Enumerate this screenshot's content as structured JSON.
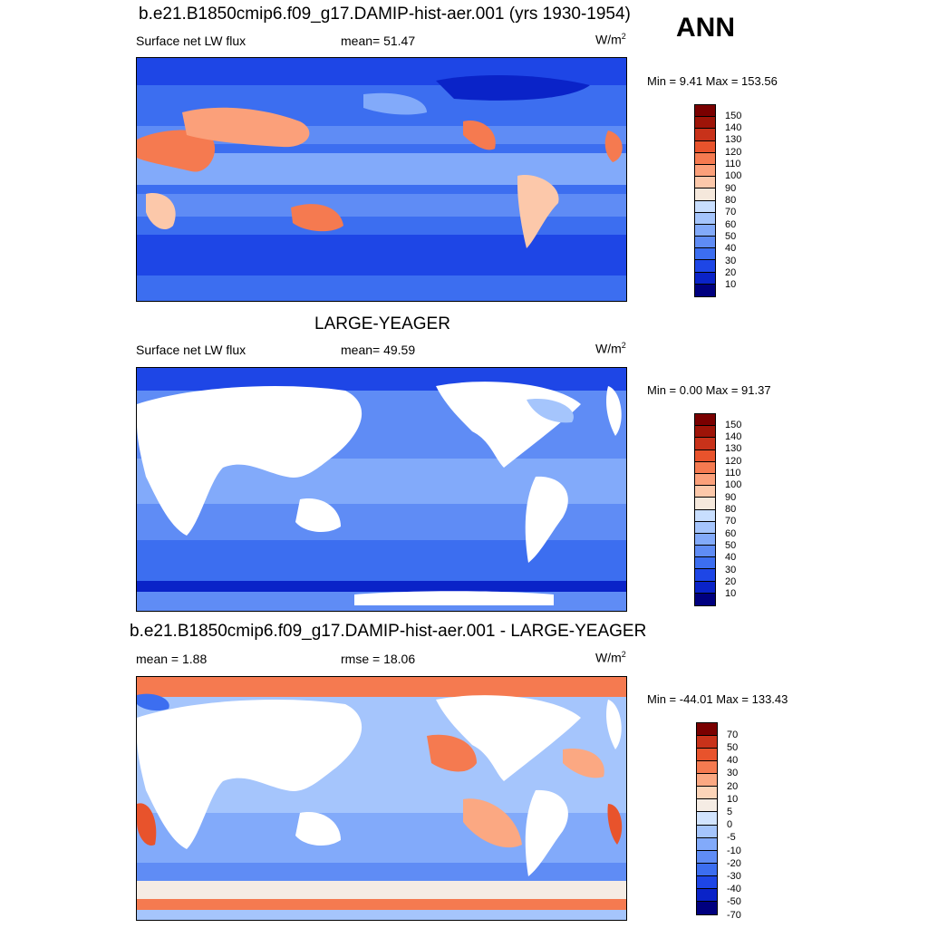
{
  "header": {
    "season": "ANN"
  },
  "palettes": {
    "abs": [
      "#00007f",
      "#0a23c8",
      "#1e46e6",
      "#3c6ef0",
      "#5f8cf5",
      "#82aafa",
      "#a5c5fc",
      "#c8defe",
      "#f5e8dc",
      "#fcc8aa",
      "#fba07a",
      "#f57a50",
      "#e8532c",
      "#c8321a",
      "#9e1408",
      "#7a0000"
    ],
    "diff": [
      "#00007f",
      "#0a23c8",
      "#1e46e6",
      "#3c6ef0",
      "#5f8cf5",
      "#82aafa",
      "#a5c5fc",
      "#d2e4fe",
      "#f5ece4",
      "#fcd4b8",
      "#fba882",
      "#f57a50",
      "#e8532c",
      "#c8321a",
      "#7a0000"
    ]
  },
  "panels": [
    {
      "title": "b.e21.B1850cmip6.f09_g17.DAMIP-hist-aer.001 (yrs 1930-1954)",
      "left_label": "Surface net LW flux",
      "mid_label": "mean=  51.47",
      "units": "W/m",
      "units_sup": "2",
      "minmax": "Min =   9.41 Max = 153.56",
      "colorbar_ticks": [
        "150",
        "140",
        "130",
        "120",
        "110",
        "100",
        "90",
        "80",
        "70",
        "60",
        "50",
        "40",
        "30",
        "20",
        "10"
      ]
    },
    {
      "title": "LARGE-YEAGER",
      "left_label": "Surface net LW flux",
      "mid_label": "mean=  49.59",
      "units": "W/m",
      "units_sup": "2",
      "minmax": "Min =   0.00 Max =  91.37",
      "colorbar_ticks": [
        "150",
        "140",
        "130",
        "120",
        "110",
        "100",
        "90",
        "80",
        "70",
        "60",
        "50",
        "40",
        "30",
        "20",
        "10"
      ]
    },
    {
      "title": "b.e21.B1850cmip6.f09_g17.DAMIP-hist-aer.001 - LARGE-YEAGER",
      "left_label": "mean =   1.88",
      "mid_label": "rmse =  18.06",
      "units": "W/m",
      "units_sup": "2",
      "minmax": "Min = -44.01 Max = 133.43",
      "colorbar_ticks": [
        "70",
        "50",
        "40",
        "30",
        "20",
        "10",
        "5",
        "0",
        "-5",
        "-10",
        "-20",
        "-30",
        "-40",
        "-50",
        "-70"
      ]
    }
  ]
}
